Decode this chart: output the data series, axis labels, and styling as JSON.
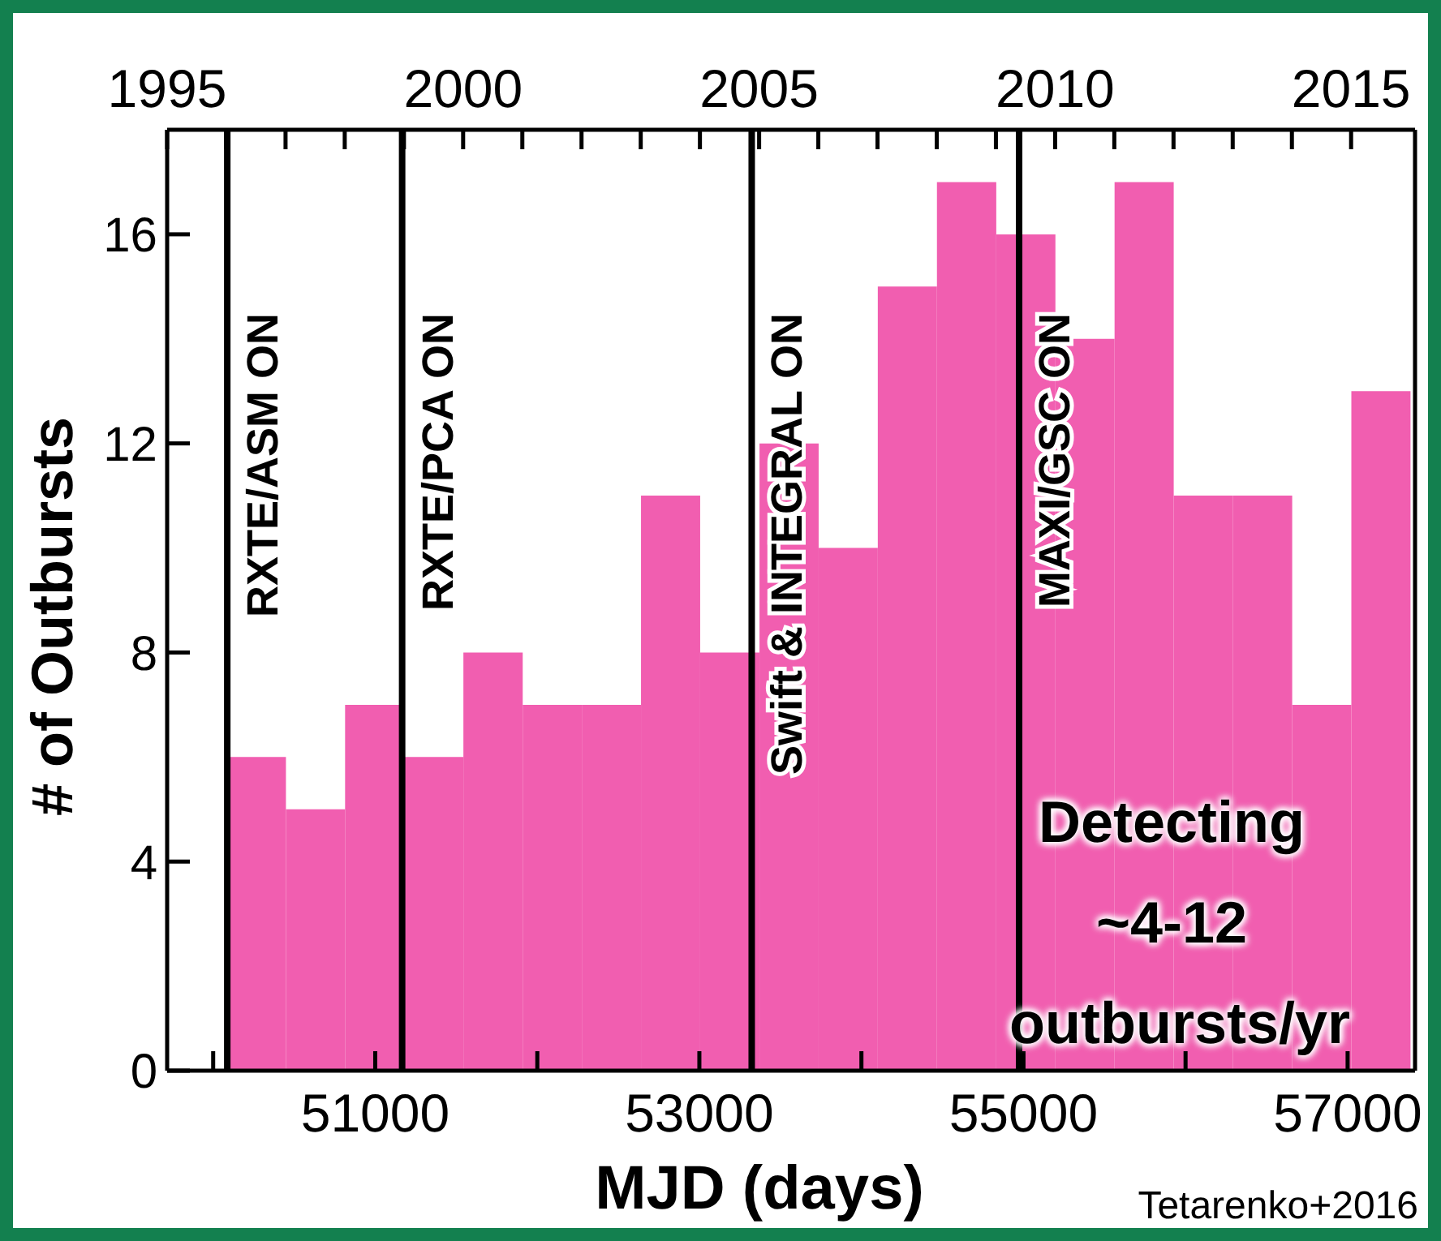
{
  "chart_data": {
    "type": "histogram",
    "xlabel": "MJD (days)",
    "ylabel": "# of Outbursts",
    "bins": [
      50083,
      50449,
      50814,
      51179,
      51544,
      51910,
      52275,
      52640,
      53005,
      53371,
      53736,
      54101,
      54466,
      54832,
      55197,
      55562,
      55927,
      56293,
      56658,
      57023,
      57388
    ],
    "values": [
      6,
      5,
      7,
      6,
      8,
      7,
      7,
      11,
      8,
      12,
      10,
      15,
      17,
      16,
      14,
      17,
      11,
      11,
      7,
      13
    ],
    "color": "#f15eb0",
    "xlim": [
      49716,
      57416
    ],
    "xticks": [
      {
        "value": 50000,
        "label": null
      },
      51000,
      {
        "value": 52000,
        "label": null
      },
      53000,
      {
        "value": 54000,
        "label": null
      },
      55000,
      {
        "value": 56000,
        "label": null
      },
      57000
    ],
    "x2lim": [
      1995,
      2016.08
    ],
    "x2ticks": [
      1995,
      {
        "value": 1996,
        "label": null
      },
      {
        "value": 1997,
        "label": null
      },
      {
        "value": 1998,
        "label": null
      },
      {
        "value": 1999,
        "label": null
      },
      2000,
      {
        "value": 2001,
        "label": null
      },
      {
        "value": 2002,
        "label": null
      },
      {
        "value": 2003,
        "label": null
      },
      {
        "value": 2004,
        "label": null
      },
      2005,
      {
        "value": 2006,
        "label": null
      },
      {
        "value": 2007,
        "label": null
      },
      {
        "value": 2008,
        "label": null
      },
      {
        "value": 2009,
        "label": null
      },
      2010,
      {
        "value": 2011,
        "label": null
      },
      {
        "value": 2012,
        "label": null
      },
      {
        "value": 2013,
        "label": null
      },
      {
        "value": 2014,
        "label": null
      },
      2015
    ],
    "ylim": [
      0,
      18
    ],
    "yticks": [
      0,
      4,
      8,
      12,
      16
    ],
    "grid": false,
    "ref_lines": [
      {
        "axis": "x",
        "value": 50087,
        "label": "RXTE/ASM ON",
        "color": "#000000"
      },
      {
        "axis": "x",
        "value": 51166,
        "label": "RXTE/PCA ON",
        "color": "#000000"
      },
      {
        "axis": "x",
        "value": 53323,
        "label": "Swift & INTEGRAL ON",
        "color": "#000000"
      },
      {
        "axis": "x",
        "value": 54973,
        "label": "MAXI/GSC ON",
        "color": "#000000"
      }
    ],
    "annotations": [
      "Detecting\n~4-12\noutbursts/yr",
      "Tetarenko+2016"
    ]
  }
}
